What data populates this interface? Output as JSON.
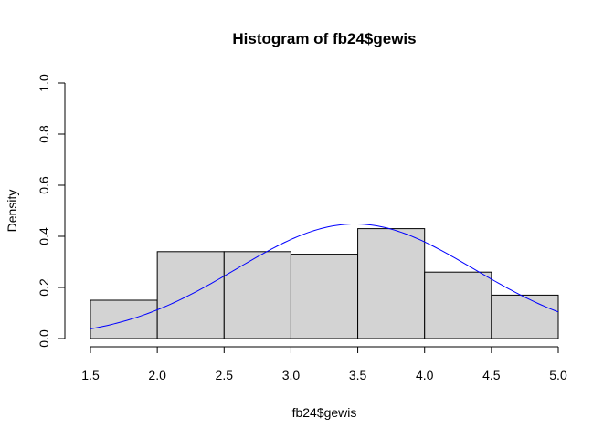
{
  "chart_data": {
    "type": "bar",
    "title": "Histogram of fb24$gewis",
    "xlabel": "fb24$gewis",
    "ylabel": "Density",
    "xlim": [
      1.5,
      5.0
    ],
    "ylim": [
      0,
      1.0
    ],
    "x_ticks": [
      "1.5",
      "2.0",
      "2.5",
      "3.0",
      "3.5",
      "4.0",
      "4.5",
      "5.0"
    ],
    "y_ticks": [
      "0.0",
      "0.2",
      "0.4",
      "0.6",
      "0.8",
      "1.0"
    ],
    "bins": [
      {
        "from": 1.5,
        "to": 2.0,
        "density": 0.15
      },
      {
        "from": 2.0,
        "to": 2.5,
        "density": 0.34
      },
      {
        "from": 2.5,
        "to": 3.0,
        "density": 0.34
      },
      {
        "from": 3.0,
        "to": 3.5,
        "density": 0.33
      },
      {
        "from": 3.5,
        "to": 4.0,
        "density": 0.43
      },
      {
        "from": 4.0,
        "to": 4.5,
        "density": 0.26
      },
      {
        "from": 4.5,
        "to": 5.0,
        "density": 0.17
      }
    ],
    "bar_fill": "#d3d3d3",
    "bar_stroke": "#000000",
    "density_curve": {
      "type": "normal",
      "mean": 3.48,
      "sd": 0.89,
      "color": "#0000ff"
    },
    "grid": false,
    "legend": "none"
  }
}
